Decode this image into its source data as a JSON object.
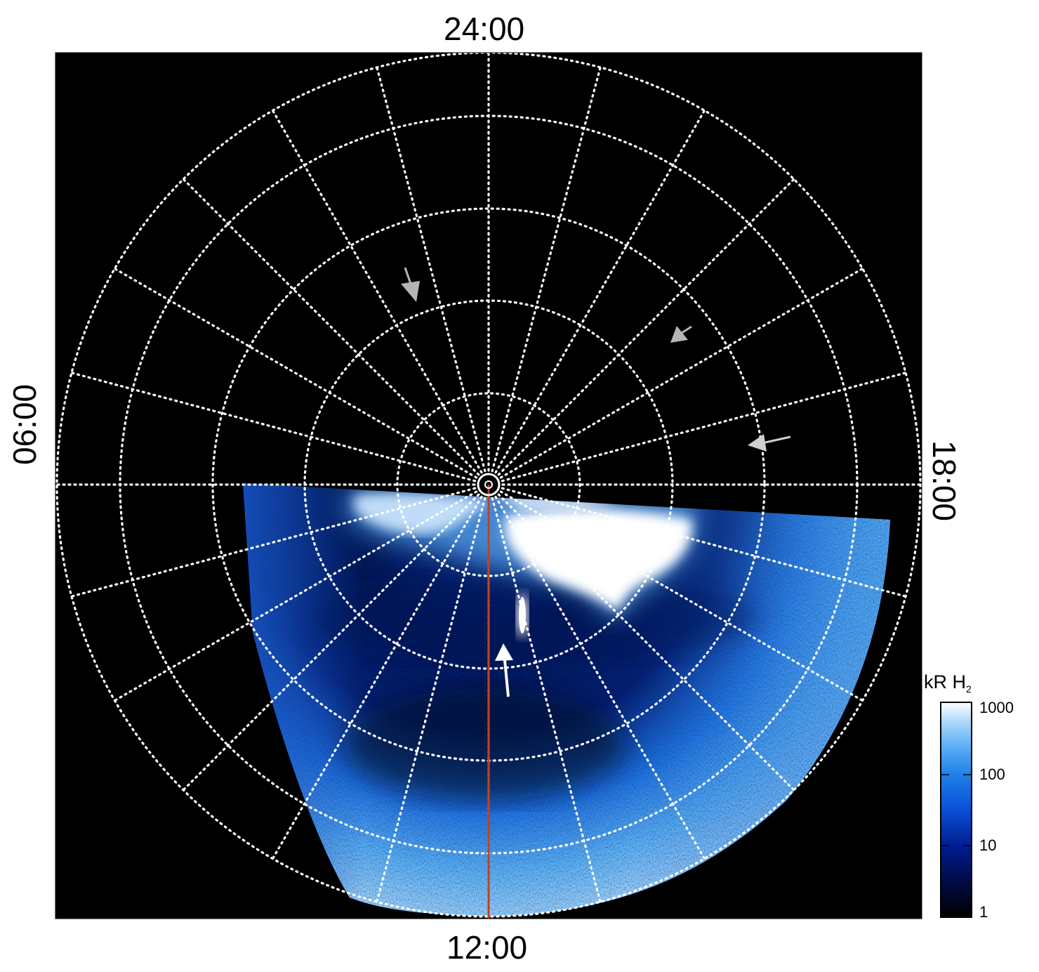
{
  "plot": {
    "local_time_labels": {
      "top": "24:00",
      "bottom": "12:00",
      "left": "06:00",
      "right": "18:00"
    },
    "colorbar": {
      "title": "kR H",
      "title_subscript": "2",
      "ticks": [
        "1000",
        "100",
        "10",
        "1"
      ],
      "scale": "log",
      "range": [
        1,
        1000
      ],
      "colors": [
        "#000000",
        "#000b3d",
        "#001a8c",
        "#0a50d6",
        "#1f7fe8",
        "#5fb1f5",
        "#b6dcfb",
        "#ffffff"
      ]
    },
    "grid": {
      "style": "dotted",
      "color": "#ffffff",
      "meridians_count": 24,
      "latitude_circles": 5
    },
    "meridian_line_color": "#c2401c",
    "arrow_colors": {
      "gray": "#b5b5b5",
      "white": "#ffffff"
    }
  }
}
